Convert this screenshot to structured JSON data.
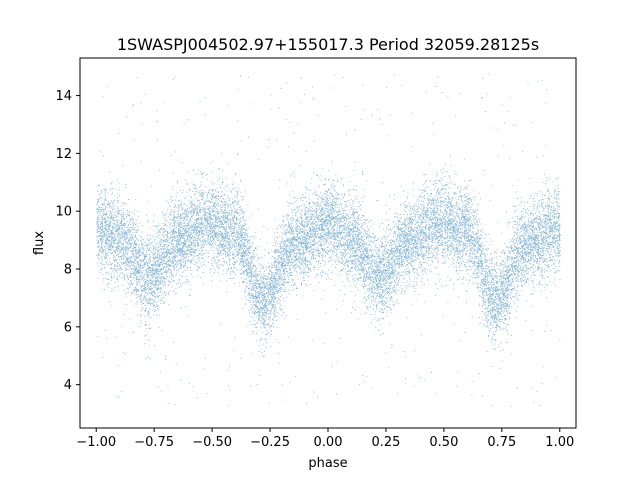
{
  "chart_data": {
    "type": "scatter",
    "title": "1SWASPJ004502.97+155017.3 Period 32059.28125s",
    "xlabel": "phase",
    "ylabel": "flux",
    "xlim": [
      -1.07,
      1.07
    ],
    "ylim": [
      2.5,
      15.3
    ],
    "xticks": [
      -1.0,
      -0.75,
      -0.5,
      -0.25,
      0.0,
      0.25,
      0.5,
      0.75,
      1.0
    ],
    "xtick_labels": [
      "−1.00",
      "−0.75",
      "−0.50",
      "−0.25",
      "0.00",
      "0.25",
      "0.50",
      "0.75",
      "1.00"
    ],
    "yticks": [
      4,
      6,
      8,
      10,
      12,
      14
    ],
    "ytick_labels": [
      "4",
      "6",
      "8",
      "10",
      "12",
      "14"
    ],
    "grid": false,
    "marker_color": "#1f77b4",
    "series": [
      {
        "x_range": [
          -1.0,
          1.0
        ],
        "profile": {
          "phase": [
            -1.0,
            -0.9,
            -0.78,
            -0.65,
            -0.52,
            -0.4,
            -0.28,
            -0.15,
            0.0,
            0.1,
            0.22,
            0.35,
            0.48,
            0.6,
            0.72,
            0.85,
            1.0
          ],
          "median_flux": [
            9.4,
            9.0,
            7.7,
            9.0,
            9.6,
            9.2,
            6.9,
            8.8,
            9.6,
            9.0,
            7.7,
            9.0,
            9.6,
            9.2,
            6.9,
            8.8,
            9.4
          ]
        }
      }
    ]
  }
}
